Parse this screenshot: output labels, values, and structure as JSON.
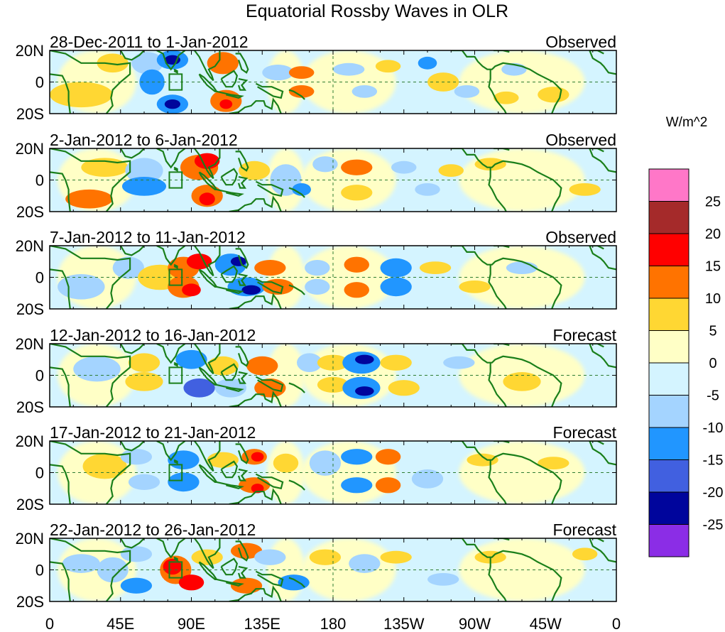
{
  "chart_data": {
    "type": "heatmap",
    "title": "Equatorial Rossby Waves in OLR",
    "units": "W/m^2",
    "lat_ticks": [
      "20N",
      "0",
      "20S"
    ],
    "lon_ticks": [
      "0",
      "45E",
      "90E",
      "135E",
      "180",
      "135W",
      "90W",
      "45W",
      "0"
    ],
    "lon_range": [
      0,
      360
    ],
    "lat_range": [
      -20,
      20
    ],
    "colorbar": {
      "labels": [
        "25",
        "20",
        "15",
        "10",
        "5",
        "0",
        "-5",
        "-10",
        "-15",
        "-20",
        "-25"
      ],
      "colors": [
        "#ff77c8",
        "#a52a2a",
        "#ff0000",
        "#ff7300",
        "#ffd733",
        "#ffffc6",
        "#d4f4ff",
        "#a4d4ff",
        "#2196ff",
        "#4160e0",
        "#00059c",
        "#8b2de6"
      ]
    },
    "panels": [
      {
        "period": "28-Dec-2011 to 1-Jan-2012",
        "status": "Observed"
      },
      {
        "period": "2-Jan-2012 to 6-Jan-2012",
        "status": "Observed"
      },
      {
        "period": "7-Jan-2012 to 11-Jan-2012",
        "status": "Observed"
      },
      {
        "period": "12-Jan-2012 to 16-Jan-2012",
        "status": "Forecast"
      },
      {
        "period": "17-Jan-2012 to 21-Jan-2012",
        "status": "Forecast"
      },
      {
        "period": "22-Jan-2012 to 26-Jan-2012",
        "status": "Forecast"
      }
    ]
  }
}
